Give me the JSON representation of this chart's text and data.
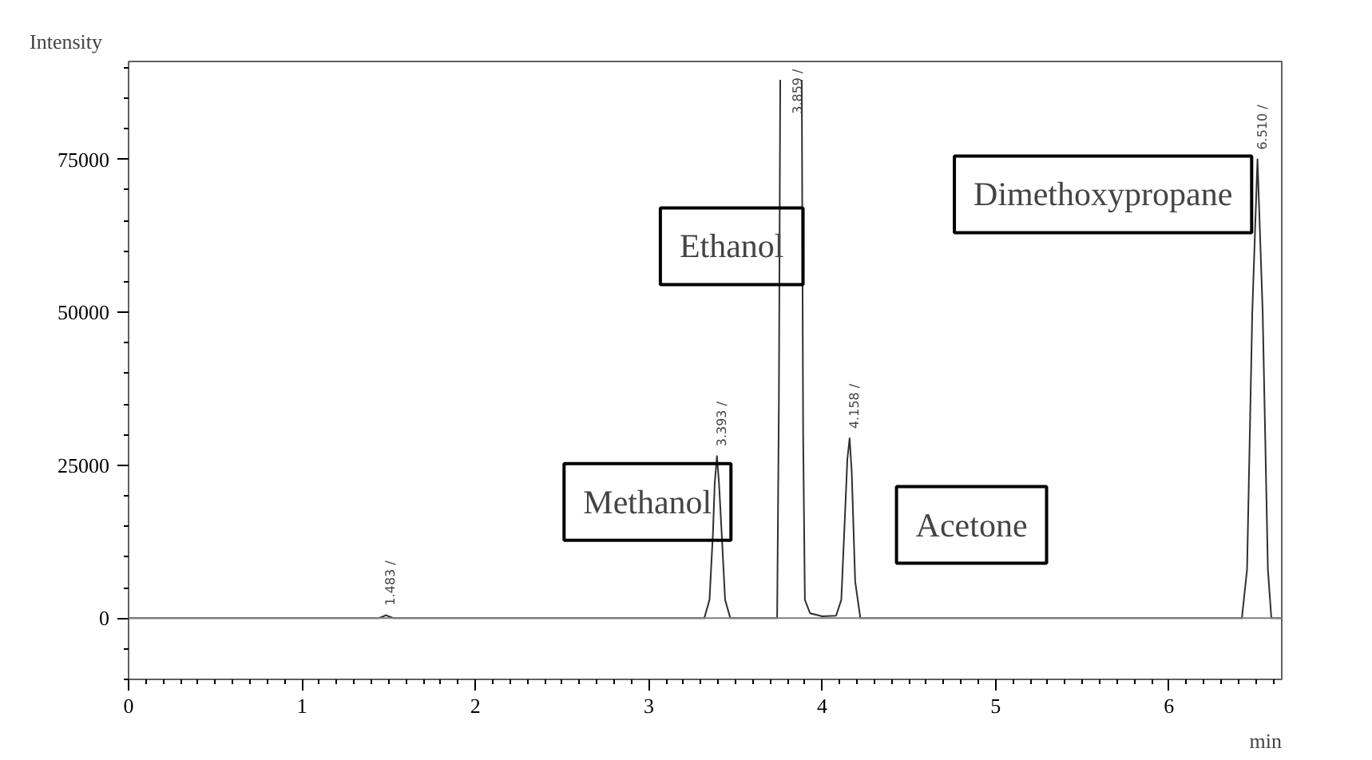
{
  "chart_data": {
    "type": "line",
    "xlabel": "min",
    "ylabel": "Intensity",
    "xlim": [
      0,
      6.65
    ],
    "ylim": [
      -10000,
      91000
    ],
    "xticks": [
      0,
      1,
      2,
      3,
      4,
      5,
      6
    ],
    "yticks": [
      0,
      25000,
      50000,
      75000
    ],
    "grid": false,
    "marker": "none",
    "line_style": "solid",
    "series": [
      {
        "color": "#303030",
        "x": [
          0,
          1.44,
          1.47,
          1.483,
          1.5,
          1.53,
          3.32,
          3.35,
          3.37,
          3.38,
          3.393,
          3.405,
          3.42,
          3.44,
          3.47,
          3.74,
          3.75,
          3.758,
          3.82,
          3.882,
          3.89,
          3.9,
          3.93,
          4.0,
          4.08,
          4.11,
          4.13,
          4.145,
          4.158,
          4.17,
          4.19,
          4.22,
          6.42,
          6.45,
          6.48,
          6.51,
          6.54,
          6.57,
          6.59,
          6.65
        ],
        "values": [
          0,
          0,
          300,
          500,
          300,
          0,
          0,
          3000,
          14000,
          22000,
          26500,
          22000,
          14000,
          3000,
          0,
          0,
          35000,
          88000,
          null,
          88000,
          30000,
          3000,
          800,
          300,
          400,
          3000,
          16000,
          26000,
          29400,
          24000,
          6000,
          0,
          0,
          8000,
          50000,
          75000,
          50000,
          8000,
          0,
          0
        ]
      }
    ],
    "ref_lines": [
      {
        "axis": "y",
        "value": 0,
        "color": "#808080"
      }
    ],
    "annotations": [
      {
        "text": "1.483 /",
        "x": 1.483,
        "y": 500
      },
      {
        "text": "3.393 /",
        "x": 3.393,
        "y": 26500
      },
      {
        "text": "4.158 /",
        "x": 4.158,
        "y": 29400
      },
      {
        "text": "6.510 /",
        "x": 6.51,
        "y": 75000
      },
      "3.859 /",
      "Methanol",
      "Ethanol",
      "Acetone",
      "Dimethoxypropane"
    ]
  }
}
